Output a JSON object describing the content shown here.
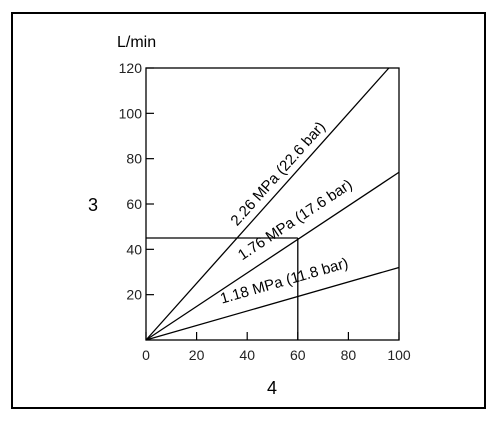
{
  "chart_data": {
    "type": "line",
    "y_unit": "L/min",
    "ylabel": "3",
    "xlabel": "4",
    "xlim": [
      0,
      100
    ],
    "ylim": [
      0,
      120
    ],
    "x_ticks": [
      "0",
      "20",
      "40",
      "60",
      "80",
      "100"
    ],
    "y_ticks": [
      "20",
      "40",
      "60",
      "80",
      "100",
      "120"
    ],
    "grid": false,
    "series": [
      {
        "label": "2.26 MPa (22.6 bar)",
        "points": [
          [
            0,
            0
          ],
          [
            96,
            120
          ]
        ]
      },
      {
        "label": "1.76 MPa (17.6 bar)",
        "points": [
          [
            0,
            0
          ],
          [
            100,
            74
          ]
        ]
      },
      {
        "label": "1.18 MPa (11.8 bar)",
        "points": [
          [
            0,
            0
          ],
          [
            100,
            32
          ]
        ]
      }
    ],
    "reference_point": {
      "x": 60,
      "y": 45
    }
  }
}
